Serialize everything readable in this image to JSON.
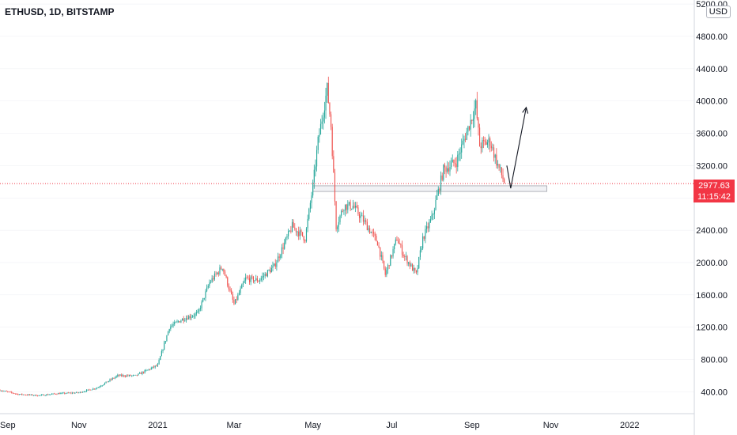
{
  "symbol": "ETHUSD, 1D, BITSTAMP",
  "currency": "USD",
  "last_price": "2977.63",
  "countdown": "11:15:42",
  "colors": {
    "up": "#26a69a",
    "down": "#ef5350",
    "price_line": "#f23645",
    "grid": "#e0e3eb"
  },
  "chart_data": {
    "type": "candlestick",
    "title": "ETHUSD, 1D, BITSTAMP",
    "xlabel": "",
    "ylabel": "",
    "ylim": [
      130,
      5250
    ],
    "y_ticks": [
      "400.00",
      "800.00",
      "1200.00",
      "1600.00",
      "2000.00",
      "2400.00",
      "2800.00",
      "3200.00",
      "3600.00",
      "4000.00",
      "4400.00",
      "4800.00",
      "5200.00"
    ],
    "x_ticks": [
      "Sep",
      "Nov",
      "2021",
      "Mar",
      "May",
      "Jul",
      "Sep",
      "Nov",
      "2022"
    ],
    "x_range": [
      "2020-09-01",
      "2022-02-20"
    ],
    "series": [
      {
        "values": [
          [
            "2020-09-01",
            420
          ],
          [
            "2020-09-15",
            370
          ],
          [
            "2020-10-01",
            355
          ],
          [
            "2020-10-15",
            378
          ],
          [
            "2020-11-01",
            390
          ],
          [
            "2020-11-15",
            450
          ],
          [
            "2020-12-01",
            600
          ],
          [
            "2020-12-15",
            600
          ],
          [
            "2021-01-01",
            730
          ],
          [
            "2021-01-10",
            1200
          ],
          [
            "2021-01-20",
            1300
          ],
          [
            "2021-02-01",
            1370
          ],
          [
            "2021-02-10",
            1750
          ],
          [
            "2021-02-20",
            1950
          ],
          [
            "2021-03-01",
            1480
          ],
          [
            "2021-03-10",
            1800
          ],
          [
            "2021-03-20",
            1780
          ],
          [
            "2021-04-01",
            1950
          ],
          [
            "2021-04-15",
            2450
          ],
          [
            "2021-04-25",
            2300
          ],
          [
            "2021-05-01",
            2950
          ],
          [
            "2021-05-05",
            3500
          ],
          [
            "2021-05-12",
            4150
          ],
          [
            "2021-05-15",
            3700
          ],
          [
            "2021-05-19",
            2450
          ],
          [
            "2021-05-25",
            2700
          ],
          [
            "2021-06-01",
            2700
          ],
          [
            "2021-06-10",
            2500
          ],
          [
            "2021-06-20",
            2250
          ],
          [
            "2021-06-26",
            1850
          ],
          [
            "2021-07-05",
            2300
          ],
          [
            "2021-07-10",
            2100
          ],
          [
            "2021-07-20",
            1850
          ],
          [
            "2021-07-25",
            2300
          ],
          [
            "2021-08-01",
            2550
          ],
          [
            "2021-08-10",
            3150
          ],
          [
            "2021-08-20",
            3250
          ],
          [
            "2021-09-01",
            3800
          ],
          [
            "2021-09-04",
            3950
          ],
          [
            "2021-09-07",
            3450
          ],
          [
            "2021-09-15",
            3500
          ],
          [
            "2021-09-20",
            3250
          ],
          [
            "2021-09-26",
            3000
          ]
        ]
      }
    ],
    "annotations": {
      "support_zone": {
        "from": "2021-05-01",
        "to": "2021-10-29",
        "low": 2880,
        "high": 2950
      },
      "projection_arrow": [
        [
          "2021-09-28",
          3200
        ],
        [
          "2021-10-01",
          2920
        ],
        [
          "2021-10-13",
          3920
        ]
      ]
    }
  }
}
